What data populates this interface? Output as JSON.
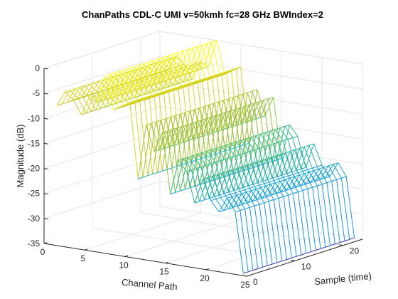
{
  "chart_data": {
    "type": "mesh",
    "title": "ChanPaths CDL-C UMI v=50kmh fc=28 GHz BWIndex=2",
    "xlabel": "Channel Path",
    "ylabel": "Sample (time)",
    "zlabel": "Magnitude (dB)",
    "xlim": [
      0,
      25
    ],
    "ylim": [
      0,
      24
    ],
    "zlim": [
      -35,
      0
    ],
    "x_ticks": [
      "0",
      "5",
      "10",
      "15",
      "20",
      "25"
    ],
    "y_ticks": [
      "0",
      "10",
      "20"
    ],
    "z_ticks": [
      "0",
      "-5",
      "-10",
      "-15",
      "-20",
      "-25",
      "-30",
      "-35"
    ],
    "grid": true,
    "colormap": "parula",
    "paths": [
      1,
      2,
      3,
      4,
      5,
      6,
      7,
      8,
      9,
      10,
      11,
      12,
      13,
      14,
      15,
      16,
      17,
      18,
      19,
      20,
      21,
      22,
      23,
      24
    ],
    "samples": [
      1,
      2,
      3,
      4,
      5,
      6,
      7,
      8,
      9,
      10,
      11,
      12,
      13,
      14,
      15,
      16,
      17,
      18,
      19,
      20,
      21,
      22,
      23,
      24
    ],
    "path_gains_db": [
      -7.5,
      -4.5,
      -5.8,
      -8.5,
      -4.8,
      -5.5,
      0,
      -6.5,
      -5.5,
      -4.5,
      -19.5,
      -8.5,
      -13.5,
      -9.5,
      -21.5,
      -14.5,
      -16.5,
      -22.5,
      -17.5,
      -21.5,
      -23.5,
      -20.5,
      -23.0,
      -35.0
    ]
  }
}
